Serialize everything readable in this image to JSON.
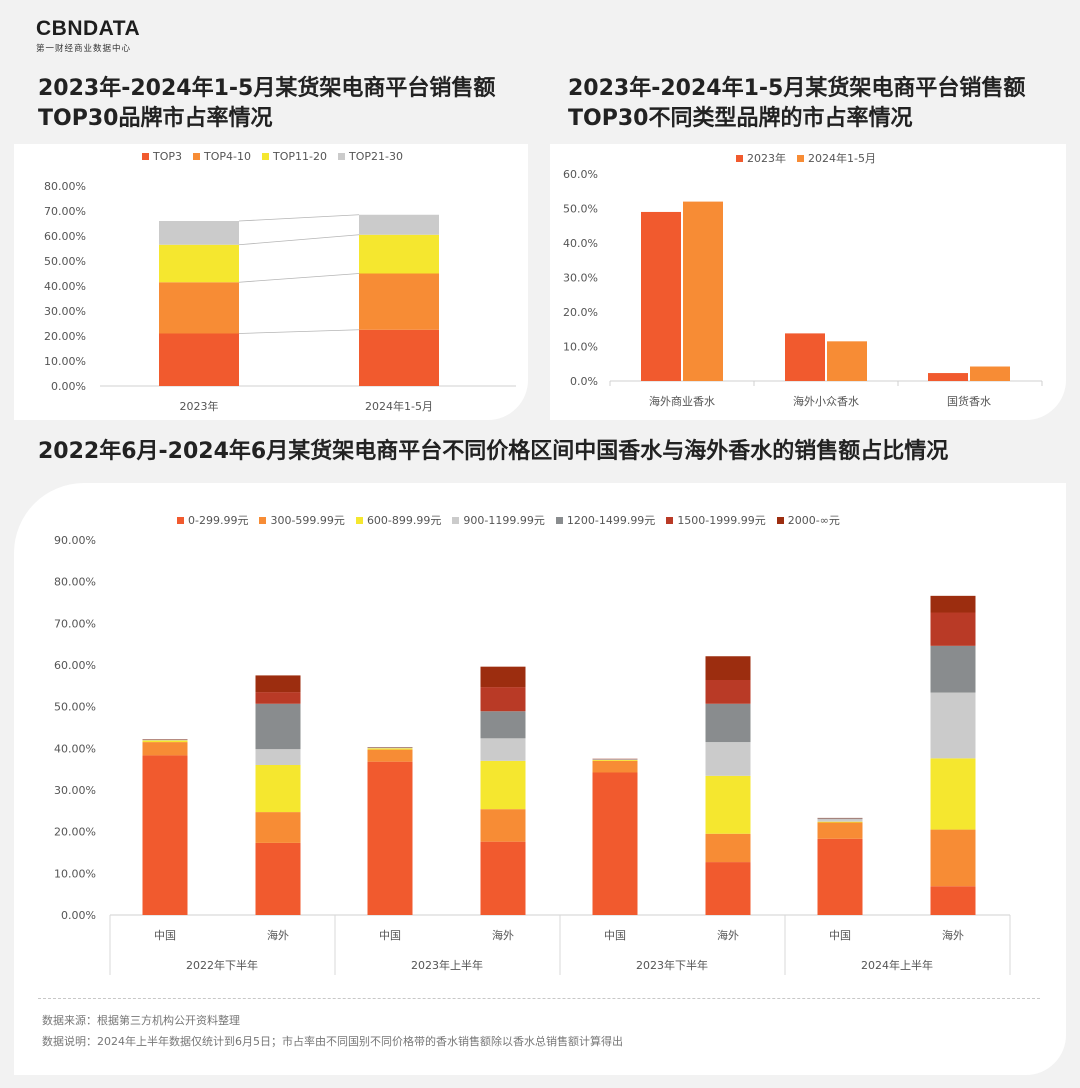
{
  "brand": {
    "logo": "CBNDATA",
    "tagline": "第一财经商业数据中心"
  },
  "titles": {
    "chart1": [
      "2023年-2024年1-5月某货架电商平台销售额",
      "TOP30品牌市占率情况"
    ],
    "chart2": [
      "2023年-2024年1-5月某货架电商平台销售额",
      "TOP30不同类型品牌的市占率情况"
    ],
    "chart3": "2022年6月-2024年6月某货架电商平台不同价格区间中国香水与海外香水的销售额占比情况"
  },
  "colors": [
    "#f15a2e",
    "#f78c35",
    "#f5e72f",
    "#cbcbcb",
    "#898c8e",
    "#b93a26",
    "#9c2d0f"
  ],
  "chart_data": [
    {
      "id": "chart1",
      "type": "bar",
      "stacked": true,
      "categories": [
        "2023年",
        "2024年1-5月"
      ],
      "series": [
        {
          "name": "TOP3",
          "values": [
            21.0,
            22.5
          ]
        },
        {
          "name": "TOP4-10",
          "values": [
            20.5,
            22.5
          ]
        },
        {
          "name": "TOP11-20",
          "values": [
            15.0,
            15.5
          ]
        },
        {
          "name": "TOP21-30",
          "values": [
            9.5,
            8.0
          ]
        }
      ],
      "ylim": [
        0,
        80
      ],
      "yticks": [
        "0.00%",
        "10.00%",
        "20.00%",
        "30.00%",
        "40.00%",
        "50.00%",
        "60.00%",
        "70.00%",
        "80.00%"
      ],
      "legend_position": "top"
    },
    {
      "id": "chart2",
      "type": "bar",
      "categories": [
        "海外商业香水",
        "海外小众香水",
        "国货香水"
      ],
      "series": [
        {
          "name": "2023年",
          "values": [
            49.0,
            13.8,
            2.3
          ]
        },
        {
          "name": "2024年1-5月",
          "values": [
            52.0,
            11.5,
            4.2
          ]
        }
      ],
      "ylim": [
        0,
        60
      ],
      "yticks": [
        "0.0%",
        "10.0%",
        "20.0%",
        "30.0%",
        "40.0%",
        "50.0%",
        "60.0%"
      ],
      "legend_position": "top"
    },
    {
      "id": "chart3",
      "type": "bar",
      "stacked": true,
      "categories": [
        "中国",
        "海外",
        "中国",
        "海外",
        "中国",
        "海外",
        "中国",
        "海外"
      ],
      "groups": [
        "2022年下半年",
        "2023年上半年",
        "2023年下半年",
        "2024年上半年"
      ],
      "series": [
        {
          "name": "0-299.99元",
          "values": [
            38.3,
            17.3,
            36.8,
            17.6,
            34.2,
            12.7,
            18.3,
            6.9
          ]
        },
        {
          "name": "300-599.99元",
          "values": [
            3.2,
            7.4,
            2.9,
            7.8,
            2.8,
            6.8,
            3.9,
            13.6
          ]
        },
        {
          "name": "600-899.99元",
          "values": [
            0.4,
            11.3,
            0.3,
            11.6,
            0.2,
            13.9,
            0.2,
            17.1
          ]
        },
        {
          "name": "900-1199.99元",
          "values": [
            0.1,
            3.8,
            0.1,
            5.4,
            0.1,
            8.1,
            0.6,
            15.8
          ]
        },
        {
          "name": "1200-1499.99元",
          "values": [
            0.1,
            10.9,
            0.1,
            6.5,
            0.1,
            9.2,
            0.2,
            11.2
          ]
        },
        {
          "name": "1500-1999.99元",
          "values": [
            0.05,
            2.8,
            0.05,
            5.8,
            0.05,
            5.7,
            0.05,
            8.0
          ]
        },
        {
          "name": "2000-∞元",
          "values": [
            0.05,
            4.0,
            0.05,
            4.9,
            0.05,
            5.7,
            0.05,
            4.0
          ]
        }
      ],
      "ylim": [
        0,
        90
      ],
      "yticks": [
        "0.00%",
        "10.00%",
        "20.00%",
        "30.00%",
        "40.00%",
        "50.00%",
        "60.00%",
        "70.00%",
        "80.00%",
        "90.00%"
      ],
      "legend_position": "top"
    }
  ],
  "notes": {
    "source": "数据来源：根据第三方机构公开资料整理",
    "explain": "数据说明：2024年上半年数据仅统计到6月5日；市占率由不同国别不同价格带的香水销售额除以香水总销售额计算得出"
  }
}
